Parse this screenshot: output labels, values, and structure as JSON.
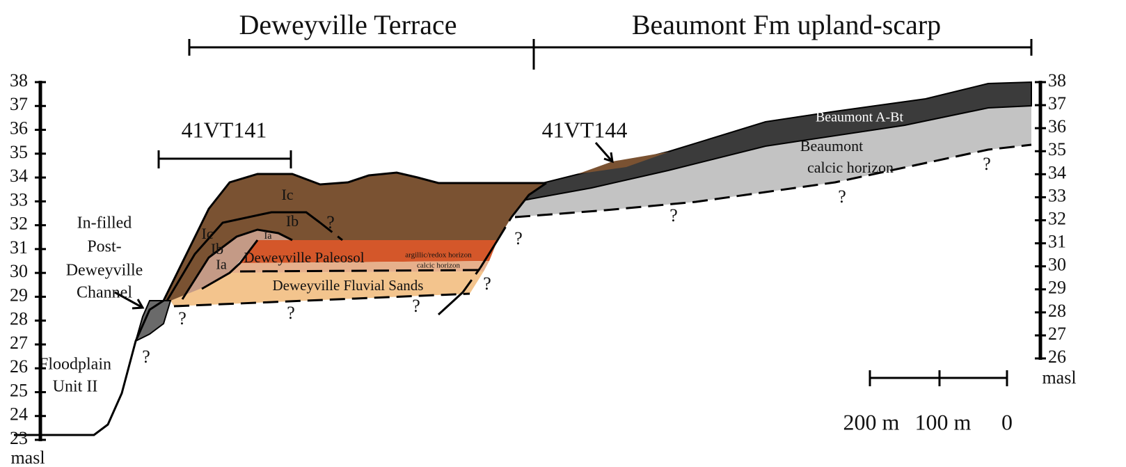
{
  "header": {
    "left_title": "Deweyville Terrace",
    "right_title": "Beaumont Fm upland-scarp"
  },
  "sites": [
    "41VT141",
    "41VT144"
  ],
  "left_axis": {
    "ticks": [
      23,
      24,
      25,
      26,
      27,
      28,
      29,
      30,
      31,
      32,
      33,
      34,
      35,
      36,
      37,
      38
    ],
    "unit": "masl"
  },
  "right_axis": {
    "ticks": [
      26,
      27,
      28,
      29,
      30,
      31,
      32,
      33,
      34,
      35,
      36,
      37,
      38
    ],
    "unit": "masl"
  },
  "labels": {
    "channel": [
      "In-filled",
      "Post-",
      "Deweyville",
      "Channel"
    ],
    "floodplain": [
      "Floodplain",
      "Unit II"
    ],
    "ic_upper": "Ic",
    "ic_lower": "Ic",
    "ib_upper": "Ib",
    "ib_lower": "Ib",
    "ia_upper": "Ia",
    "ia_lower": "Ia",
    "paleosol": "Deweyville Paleosol",
    "argillic": "argillic/redox horizon",
    "calcic_small": "calcic horizon",
    "sands": "Deweyville Fluvial Sands",
    "beaumont_abt": "Beaumont A-Bt",
    "beaumont": "Beaumont",
    "beaumont_calcic": "calcic horizon"
  },
  "question_marks": [
    "?",
    "?",
    "?",
    "?",
    "?",
    "?",
    "?",
    "?",
    "?",
    "?"
  ],
  "scale_bar": [
    "200 m",
    "100 m",
    "0"
  ]
}
